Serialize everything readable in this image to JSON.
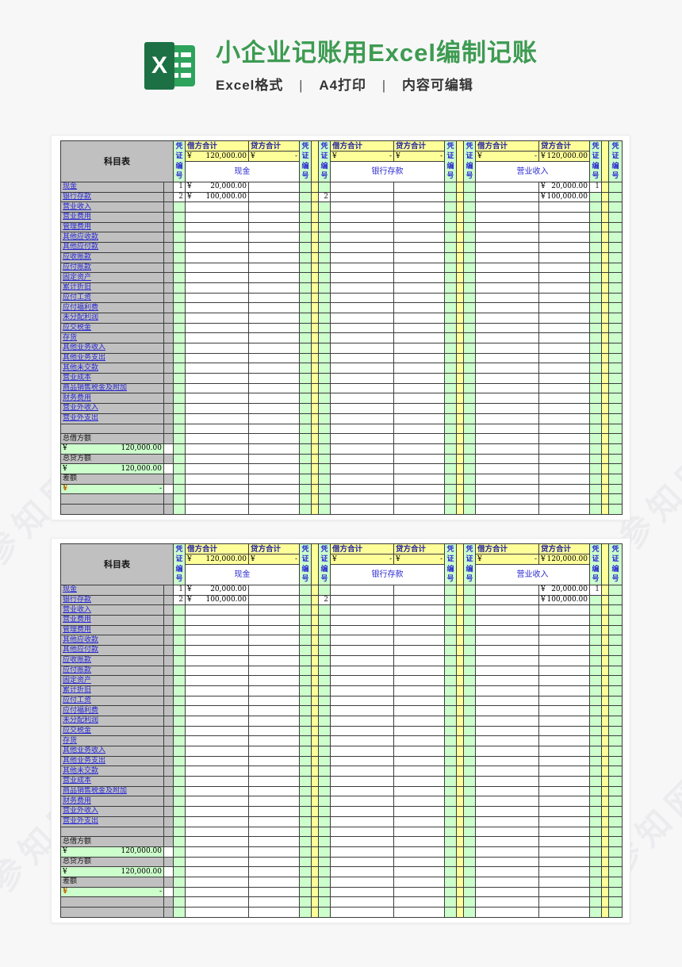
{
  "header": {
    "title": "小企业记账用Excel编制记账",
    "subtitle_parts": [
      "Excel格式",
      "A4打印",
      "内容可编辑"
    ],
    "separator": "|",
    "logo_letter": "X",
    "title_color": "#3d9b51"
  },
  "watermark": {
    "text": "参知网"
  },
  "colors": {
    "gray": "#c0c0c0",
    "green": "#ccffcc",
    "yellow": "#ffff99",
    "link_blue": "#2626cf",
    "header_label_blue": "#20209e",
    "diff_yen_orange": "#c06000"
  },
  "sheet": {
    "corner_label": "科目表",
    "voucher_col_label": "凭证编号",
    "accounts": [
      "现金",
      "银行存款",
      "营业收入",
      "营业费用",
      "管理费用",
      "其他应收款",
      "其他应付款",
      "应收账款",
      "应付账款",
      "固定资产",
      "累计折旧",
      "应付工资",
      "应付福利费",
      "未分配利润",
      "应交税金",
      "存货",
      "其他业务收入",
      "其他业务支出",
      "其他未交款",
      "营业成本",
      "商品销售税金及附加",
      "财务费用",
      "营业外收入",
      "营业外支出"
    ],
    "sections": [
      {
        "name": "现金",
        "debit_header": "借方合计",
        "credit_header": "贷方合计",
        "debit_total": {
          "yen": "¥",
          "amount": "120,000.00"
        },
        "credit_total": {
          "yen": "¥",
          "amount": "-"
        },
        "entries": [
          {
            "row": 0,
            "voucher_left": "1",
            "debit": {
              "yen": "¥",
              "amount": "20,000.00"
            }
          },
          {
            "row": 1,
            "voucher_left": "2",
            "debit": {
              "yen": "¥",
              "amount": "100,000.00"
            }
          }
        ]
      },
      {
        "name": "银行存款",
        "debit_header": "借方合计",
        "credit_header": "贷方合计",
        "debit_total": {
          "yen": "¥",
          "amount": "-"
        },
        "credit_total": {
          "yen": "¥",
          "amount": "-"
        },
        "entries": [
          {
            "row": 1,
            "voucher_left": "2"
          }
        ]
      },
      {
        "name": "营业收入",
        "debit_header": "借方合计",
        "credit_header": "贷方合计",
        "debit_total": {
          "yen": "¥",
          "amount": "-"
        },
        "credit_total": {
          "yen": "¥",
          "amount": "120,000.00"
        },
        "entries": [
          {
            "row": 0,
            "credit": {
              "yen": "¥",
              "amount": "20,000.00"
            },
            "voucher_right": "1"
          },
          {
            "row": 1,
            "credit": {
              "yen": "¥",
              "amount": "100,000.00"
            }
          }
        ]
      }
    ],
    "blank_rows_before_summary": 1,
    "blank_rows_after_summary": 2,
    "summary_rows": [
      {
        "label": "总借方额",
        "yen": "¥",
        "amount": "120,000.00",
        "yen_orange": false
      },
      {
        "label": "总贷方额",
        "yen": "¥",
        "amount": "120,000.00",
        "yen_orange": false
      },
      {
        "label": "差额",
        "yen": "¥",
        "amount": "-",
        "yen_orange": true
      }
    ]
  },
  "cards": [
    {
      "id": "sheet-preview-1"
    },
    {
      "id": "sheet-preview-2"
    }
  ]
}
